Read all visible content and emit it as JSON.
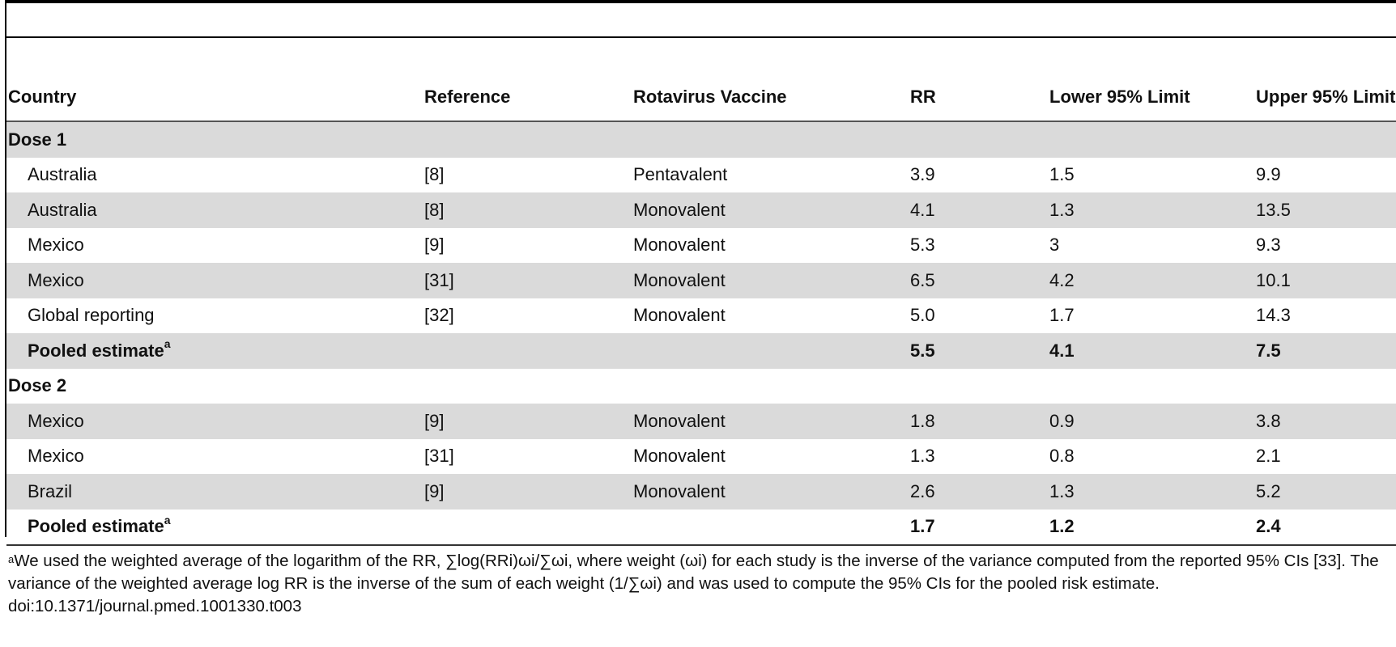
{
  "table": {
    "headers": [
      "Country",
      "Reference",
      "Rotavirus Vaccine",
      "RR",
      "Lower 95% Limit",
      "Upper 95% Limit"
    ],
    "sections": [
      {
        "label": "Dose 1",
        "rows": [
          [
            "Australia",
            "[8]",
            "Pentavalent",
            "3.9",
            "1.5",
            "9.9"
          ],
          [
            "Australia",
            "[8]",
            "Monovalent",
            "4.1",
            "1.3",
            "13.5"
          ],
          [
            "Mexico",
            "[9]",
            "Monovalent",
            "5.3",
            "3",
            "9.3"
          ],
          [
            "Mexico",
            "[31]",
            "Monovalent",
            "6.5",
            "4.2",
            "10.1"
          ],
          [
            "Global reporting",
            "[32]",
            "Monovalent",
            "5.0",
            "1.7",
            "14.3"
          ]
        ],
        "pooled": {
          "label": "Pooled estimate",
          "marker": "a",
          "rr": "5.5",
          "lower": "4.1",
          "upper": "7.5"
        }
      },
      {
        "label": "Dose 2",
        "rows": [
          [
            "Mexico",
            "[9]",
            "Monovalent",
            "1.8",
            "0.9",
            "3.8"
          ],
          [
            "Mexico",
            "[31]",
            "Monovalent",
            "1.3",
            "0.8",
            "2.1"
          ],
          [
            "Brazil",
            "[9]",
            "Monovalent",
            "2.6",
            "1.3",
            "5.2"
          ]
        ],
        "pooled": {
          "label": "Pooled estimate",
          "marker": "a",
          "rr": "1.7",
          "lower": "1.2",
          "upper": "2.4"
        }
      }
    ]
  },
  "footnote": {
    "marker": "a",
    "text": "We used the weighted average of the logarithm of the RR, ∑log(RRi)ωi/∑ωi, where weight (ωi) for each study is the inverse of the variance computed from the reported 95% CIs [33]. The variance of the weighted average log RR is the inverse of the sum of each weight (1/∑ωi) and was used to compute the 95% CIs for the pooled risk estimate.",
    "doi": "doi:10.1371/journal.pmed.1001330.t003"
  }
}
